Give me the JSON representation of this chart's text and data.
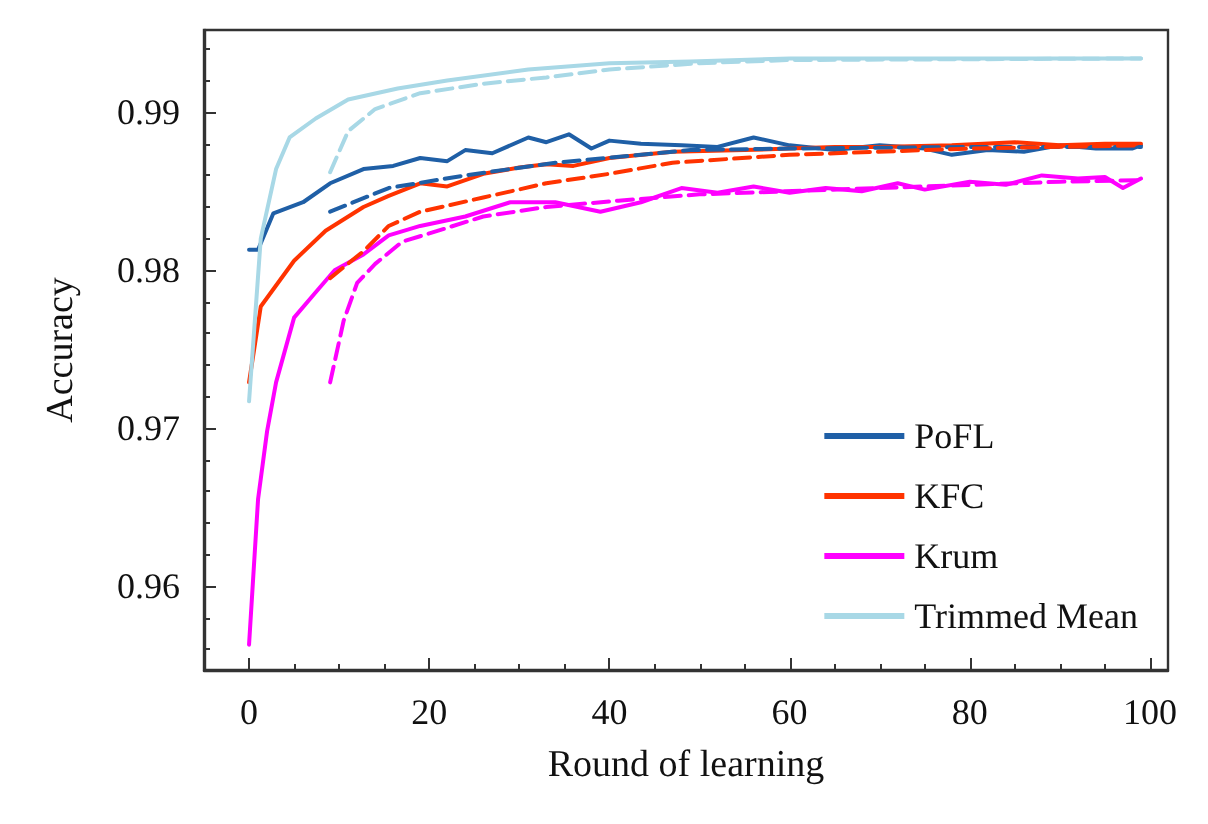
{
  "chart_data": {
    "type": "line",
    "xlabel": "Round of learning",
    "ylabel": "Accuracy",
    "xlim": [
      -5,
      102
    ],
    "xticks": [
      0,
      20,
      40,
      60,
      80,
      100
    ],
    "ylim": [
      0.9547,
      0.9952
    ],
    "yticks": [
      0.96,
      0.97,
      0.98,
      0.99
    ],
    "grid": false,
    "legend": "bottom right",
    "marker": "none",
    "series": [
      {
        "name": "PoFL",
        "color": "#1f5fa6",
        "line_style": "solid",
        "x": [
          0,
          1,
          2.7,
          6,
          9,
          12.7,
          16,
          19,
          22,
          24,
          27,
          31,
          33,
          35.5,
          38,
          40,
          43.5,
          48,
          52,
          56,
          60,
          65,
          70,
          75,
          78,
          82,
          86,
          90,
          94,
          98,
          99
        ],
        "values": [
          0.9813,
          0.9813,
          0.9836,
          0.9843,
          0.9855,
          0.9864,
          0.9866,
          0.9871,
          0.9869,
          0.9876,
          0.9874,
          0.9884,
          0.9881,
          0.9886,
          0.9877,
          0.9882,
          0.988,
          0.9879,
          0.9878,
          0.9884,
          0.9879,
          0.9876,
          0.9879,
          0.9877,
          0.9873,
          0.9876,
          0.9875,
          0.9879,
          0.9877,
          0.9877,
          0.9879
        ]
      },
      {
        "name": "KFC",
        "color": "#ff3300",
        "line_style": "solid",
        "x": [
          0,
          1.3,
          5,
          8.5,
          12.7,
          15.5,
          19,
          22,
          26,
          30,
          33,
          36,
          40,
          47,
          55,
          60,
          65,
          70,
          78,
          85,
          90,
          95,
          99
        ],
        "values": [
          0.9729,
          0.9777,
          0.9806,
          0.9825,
          0.984,
          0.9847,
          0.9855,
          0.9853,
          0.9861,
          0.9865,
          0.9867,
          0.9866,
          0.9871,
          0.9875,
          0.9876,
          0.9877,
          0.9878,
          0.9878,
          0.9879,
          0.9881,
          0.9879,
          0.988,
          0.988
        ]
      },
      {
        "name": "Krum",
        "color": "#ff00ff",
        "line_style": "solid",
        "x": [
          0,
          1,
          2,
          3,
          5,
          7.4,
          9.5,
          12.7,
          15.5,
          19,
          24,
          29,
          34,
          39,
          43.5,
          48,
          52,
          56,
          60,
          64,
          68,
          72,
          75,
          80,
          84,
          88,
          92,
          95,
          97,
          99
        ],
        "values": [
          0.9563,
          0.9655,
          0.9698,
          0.9729,
          0.977,
          0.9786,
          0.98,
          0.981,
          0.9822,
          0.9828,
          0.9834,
          0.9843,
          0.9843,
          0.9837,
          0.9843,
          0.9852,
          0.9849,
          0.9853,
          0.9849,
          0.9852,
          0.985,
          0.9855,
          0.9851,
          0.9856,
          0.9854,
          0.986,
          0.9858,
          0.9859,
          0.9852,
          0.9858
        ]
      },
      {
        "name": "Trimmed Mean",
        "color": "#a8d8e6",
        "line_style": "solid",
        "x": [
          0,
          1.3,
          3,
          4.5,
          7.4,
          11,
          16.5,
          22,
          31,
          40,
          49,
          60,
          80,
          99
        ],
        "values": [
          0.9717,
          0.982,
          0.9864,
          0.9884,
          0.9896,
          0.9908,
          0.9915,
          0.992,
          0.9927,
          0.9931,
          0.9932,
          0.9934,
          0.9934,
          0.9934
        ]
      },
      {
        "color": "#1f5fa6",
        "line_style": "dashed",
        "x": [
          9,
          15.5,
          24,
          34,
          43.5,
          49,
          60,
          80,
          99
        ],
        "values": [
          0.9837,
          0.9852,
          0.986,
          0.9868,
          0.9873,
          0.9876,
          0.9877,
          0.9878,
          0.9878
        ]
      },
      {
        "color": "#ff3300",
        "line_style": "dashed",
        "x": [
          9,
          12.7,
          15.5,
          19,
          26,
          33,
          40,
          47,
          60,
          80,
          99
        ],
        "values": [
          0.9795,
          0.9812,
          0.9828,
          0.9837,
          0.9846,
          0.9855,
          0.9861,
          0.9868,
          0.9873,
          0.9877,
          0.9879
        ]
      },
      {
        "color": "#ff00ff",
        "line_style": "dashed",
        "x": [
          9,
          10.5,
          12,
          14,
          17,
          21,
          26,
          33,
          41,
          50,
          70,
          90,
          99
        ],
        "values": [
          0.9729,
          0.9768,
          0.9792,
          0.9804,
          0.9818,
          0.9825,
          0.9834,
          0.984,
          0.9844,
          0.9848,
          0.9852,
          0.9856,
          0.9857
        ]
      },
      {
        "color": "#a8d8e6",
        "line_style": "dashed",
        "x": [
          9,
          11,
          14,
          19,
          26,
          33,
          40,
          50,
          60,
          99
        ],
        "values": [
          0.9862,
          0.9888,
          0.9902,
          0.9912,
          0.9918,
          0.9922,
          0.9927,
          0.9931,
          0.9933,
          0.9934
        ]
      }
    ]
  }
}
